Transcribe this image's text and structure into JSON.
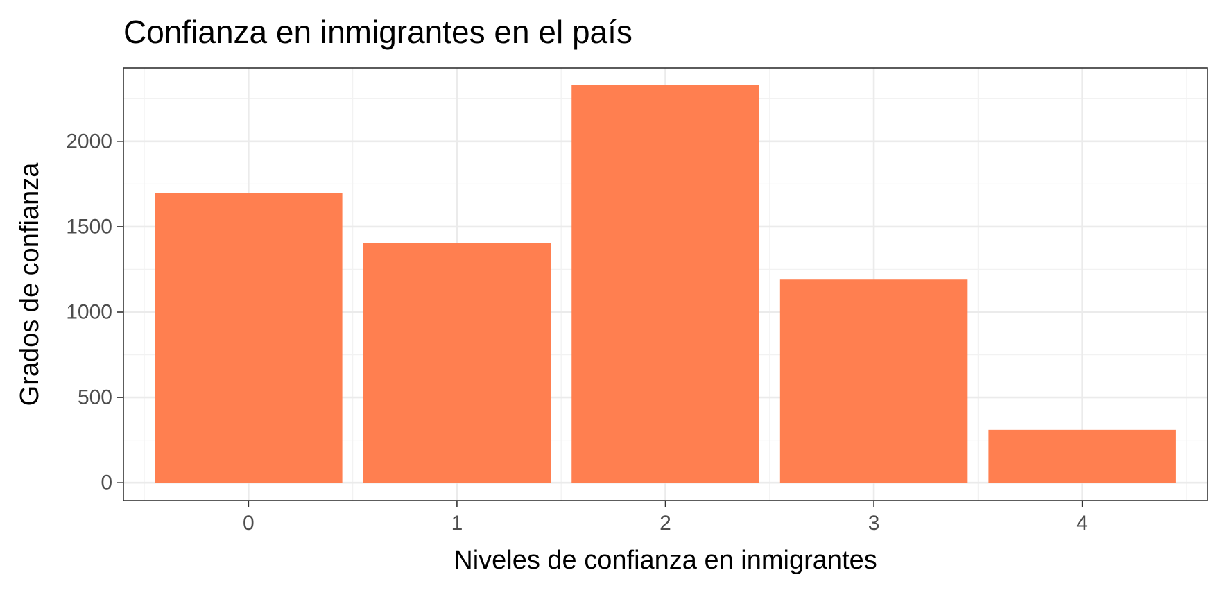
{
  "chart_data": {
    "type": "bar",
    "title": "Confianza en inmigrantes en el país",
    "xlabel": "Niveles de confianza en inmigrantes",
    "ylabel": "Grados de confianza",
    "categories": [
      "0",
      "1",
      "2",
      "3",
      "4"
    ],
    "values": [
      1695,
      1405,
      2330,
      1190,
      310
    ],
    "ylim": [
      -105,
      2430
    ],
    "y_ticks": [
      0,
      500,
      1000,
      1500,
      2000
    ],
    "y_tick_labels": [
      "0",
      "500",
      "1000",
      "1500",
      "2000"
    ],
    "grid": true,
    "legend": "none",
    "colors": {
      "bar": "#FF7F50",
      "grid_major": "#EBEBEB",
      "grid_minor": "#F2F2F2",
      "panel_border": "#333333",
      "tick_label": "#4D4D4D"
    }
  }
}
